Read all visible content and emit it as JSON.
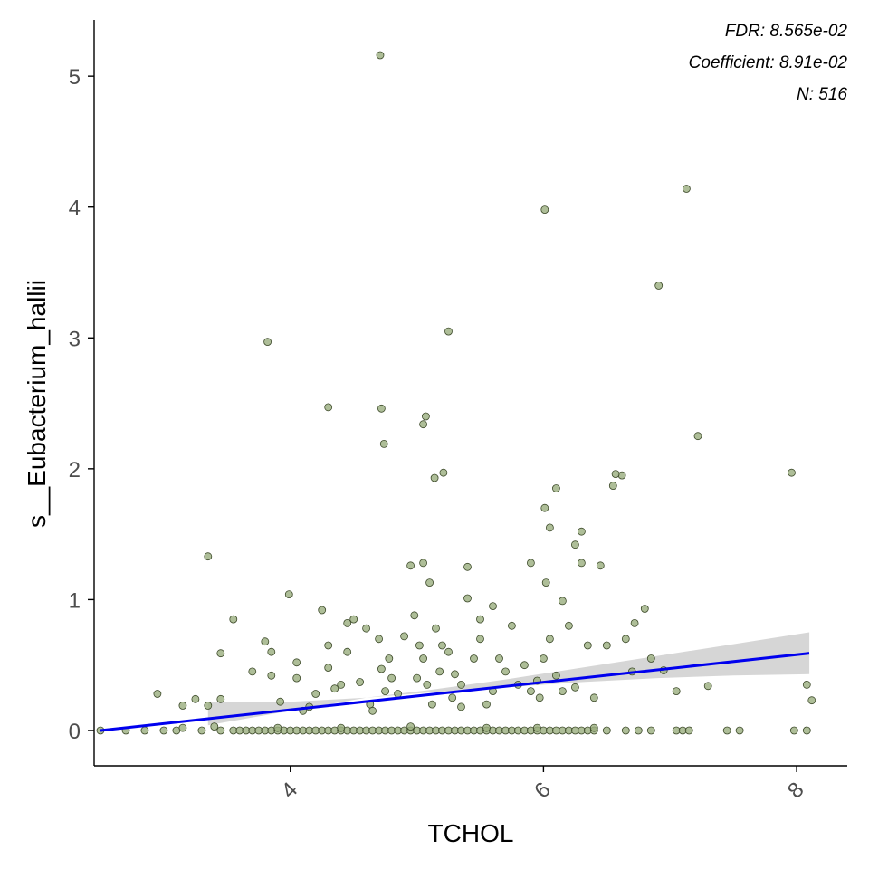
{
  "chart_data": {
    "type": "scatter",
    "xlabel": "TCHOL",
    "ylabel": "s__Eubacterium_hallii",
    "xlim": [
      2.45,
      8.4
    ],
    "ylim": [
      -0.27,
      5.43
    ],
    "x_ticks": [
      4,
      6,
      8
    ],
    "x_tick_labels": [
      "4",
      "6",
      "8"
    ],
    "y_ticks": [
      0,
      1,
      2,
      3,
      4,
      5
    ],
    "y_tick_labels": [
      "0",
      "1",
      "2",
      "3",
      "4",
      "5"
    ],
    "grid": false,
    "annotations": [
      "FDR: 8.565e-02",
      "Coefficient: 8.91e-02",
      "N: 516"
    ],
    "colors": {
      "point_fill": "#9aae7e",
      "point_stroke": "#3d4a2a",
      "fit_line": "#0000ee",
      "confidence_band": "#c8c8c8"
    },
    "fit": {
      "x": [
        2.5,
        8.1
      ],
      "y": [
        0.0,
        0.59
      ]
    },
    "confidence_band": {
      "x": [
        3.35,
        4.0,
        4.6,
        5.1,
        5.7,
        6.3,
        6.9,
        7.5,
        8.1
      ],
      "lower": [
        0.04,
        0.15,
        0.25,
        0.29,
        0.33,
        0.37,
        0.4,
        0.42,
        0.43
      ],
      "upper": [
        0.22,
        0.22,
        0.25,
        0.31,
        0.39,
        0.48,
        0.57,
        0.66,
        0.75
      ]
    },
    "points": [
      [
        2.5,
        0
      ],
      [
        2.7,
        0
      ],
      [
        2.85,
        0
      ],
      [
        3.0,
        0
      ],
      [
        3.1,
        0
      ],
      [
        3.3,
        0
      ],
      [
        3.45,
        0
      ],
      [
        3.55,
        0
      ],
      [
        3.6,
        0
      ],
      [
        3.65,
        0
      ],
      [
        3.7,
        0
      ],
      [
        3.75,
        0
      ],
      [
        3.8,
        0
      ],
      [
        3.85,
        0
      ],
      [
        3.9,
        0
      ],
      [
        3.95,
        0
      ],
      [
        4.0,
        0
      ],
      [
        4.05,
        0
      ],
      [
        4.1,
        0
      ],
      [
        4.15,
        0
      ],
      [
        4.2,
        0
      ],
      [
        4.25,
        0
      ],
      [
        4.3,
        0
      ],
      [
        4.35,
        0
      ],
      [
        4.4,
        0
      ],
      [
        4.45,
        0
      ],
      [
        4.5,
        0
      ],
      [
        4.55,
        0
      ],
      [
        4.6,
        0
      ],
      [
        4.65,
        0
      ],
      [
        4.7,
        0
      ],
      [
        4.75,
        0
      ],
      [
        4.8,
        0
      ],
      [
        4.85,
        0
      ],
      [
        4.9,
        0
      ],
      [
        4.95,
        0
      ],
      [
        5.0,
        0
      ],
      [
        5.05,
        0
      ],
      [
        5.1,
        0
      ],
      [
        5.15,
        0
      ],
      [
        5.2,
        0
      ],
      [
        5.25,
        0
      ],
      [
        5.3,
        0
      ],
      [
        5.35,
        0
      ],
      [
        5.4,
        0
      ],
      [
        5.45,
        0
      ],
      [
        5.5,
        0
      ],
      [
        5.55,
        0
      ],
      [
        5.6,
        0
      ],
      [
        5.65,
        0
      ],
      [
        5.7,
        0
      ],
      [
        5.75,
        0
      ],
      [
        5.8,
        0
      ],
      [
        5.85,
        0
      ],
      [
        5.9,
        0
      ],
      [
        5.95,
        0
      ],
      [
        6.0,
        0
      ],
      [
        6.05,
        0
      ],
      [
        6.1,
        0
      ],
      [
        6.15,
        0
      ],
      [
        6.2,
        0
      ],
      [
        6.25,
        0
      ],
      [
        6.3,
        0
      ],
      [
        6.35,
        0
      ],
      [
        6.4,
        0
      ],
      [
        6.5,
        0
      ],
      [
        6.65,
        0
      ],
      [
        6.75,
        0
      ],
      [
        6.85,
        0
      ],
      [
        7.05,
        0
      ],
      [
        7.1,
        0
      ],
      [
        7.15,
        0
      ],
      [
        7.45,
        0
      ],
      [
        7.55,
        0
      ],
      [
        7.98,
        0
      ],
      [
        8.08,
        0
      ],
      [
        3.15,
        0.02
      ],
      [
        3.4,
        0.03
      ],
      [
        3.9,
        0.02
      ],
      [
        4.4,
        0.02
      ],
      [
        4.95,
        0.03
      ],
      [
        5.55,
        0.02
      ],
      [
        5.95,
        0.02
      ],
      [
        6.4,
        0.02
      ],
      [
        2.95,
        0.28
      ],
      [
        3.15,
        0.19
      ],
      [
        3.25,
        0.24
      ],
      [
        3.35,
        0.19
      ],
      [
        3.45,
        0.24
      ],
      [
        3.35,
        1.33
      ],
      [
        3.45,
        0.59
      ],
      [
        3.55,
        0.85
      ],
      [
        3.7,
        0.45
      ],
      [
        3.8,
        0.68
      ],
      [
        3.85,
        0.6
      ],
      [
        3.85,
        0.42
      ],
      [
        3.92,
        0.22
      ],
      [
        3.99,
        1.04
      ],
      [
        4.05,
        0.4
      ],
      [
        4.05,
        0.52
      ],
      [
        4.1,
        0.15
      ],
      [
        4.15,
        0.18
      ],
      [
        4.2,
        0.28
      ],
      [
        4.25,
        0.92
      ],
      [
        4.3,
        0.48
      ],
      [
        4.3,
        0.65
      ],
      [
        4.35,
        0.32
      ],
      [
        4.4,
        0.35
      ],
      [
        4.45,
        0.6
      ],
      [
        4.45,
        0.82
      ],
      [
        4.5,
        0.85
      ],
      [
        4.55,
        0.37
      ],
      [
        4.6,
        0.78
      ],
      [
        4.63,
        0.2
      ],
      [
        4.65,
        0.15
      ],
      [
        4.7,
        0.7
      ],
      [
        4.72,
        0.47
      ],
      [
        4.75,
        0.3
      ],
      [
        4.78,
        0.55
      ],
      [
        4.8,
        0.4
      ],
      [
        4.85,
        0.28
      ],
      [
        4.9,
        0.72
      ],
      [
        4.95,
        1.26
      ],
      [
        4.98,
        0.88
      ],
      [
        5.0,
        0.4
      ],
      [
        5.02,
        0.65
      ],
      [
        5.05,
        0.55
      ],
      [
        5.05,
        1.28
      ],
      [
        5.08,
        0.35
      ],
      [
        5.1,
        1.13
      ],
      [
        5.12,
        0.2
      ],
      [
        5.15,
        0.78
      ],
      [
        5.18,
        0.45
      ],
      [
        5.2,
        0.65
      ],
      [
        5.25,
        0.6
      ],
      [
        5.28,
        0.25
      ],
      [
        5.3,
        0.43
      ],
      [
        5.35,
        0.35
      ],
      [
        5.35,
        0.18
      ],
      [
        5.4,
        1.01
      ],
      [
        5.4,
        1.25
      ],
      [
        5.45,
        0.55
      ],
      [
        5.5,
        0.7
      ],
      [
        5.5,
        0.85
      ],
      [
        5.55,
        0.2
      ],
      [
        5.6,
        0.3
      ],
      [
        5.6,
        0.95
      ],
      [
        5.65,
        0.55
      ],
      [
        5.7,
        0.45
      ],
      [
        5.75,
        0.8
      ],
      [
        5.8,
        0.35
      ],
      [
        5.85,
        0.5
      ],
      [
        5.9,
        1.28
      ],
      [
        5.9,
        0.3
      ],
      [
        5.95,
        0.38
      ],
      [
        5.97,
        0.25
      ],
      [
        6.0,
        0.55
      ],
      [
        6.02,
        1.13
      ],
      [
        6.05,
        1.55
      ],
      [
        6.05,
        0.7
      ],
      [
        6.1,
        0.42
      ],
      [
        6.1,
        1.85
      ],
      [
        6.15,
        0.3
      ],
      [
        6.15,
        0.99
      ],
      [
        6.2,
        0.8
      ],
      [
        6.25,
        1.42
      ],
      [
        6.25,
        0.33
      ],
      [
        6.3,
        1.52
      ],
      [
        6.3,
        1.28
      ],
      [
        6.35,
        0.65
      ],
      [
        6.4,
        0.25
      ],
      [
        6.45,
        1.26
      ],
      [
        6.5,
        0.65
      ],
      [
        6.55,
        1.87
      ],
      [
        6.62,
        1.95
      ],
      [
        6.65,
        0.7
      ],
      [
        6.7,
        0.45
      ],
      [
        6.72,
        0.82
      ],
      [
        6.8,
        0.93
      ],
      [
        6.85,
        0.55
      ],
      [
        6.95,
        0.46
      ],
      [
        7.05,
        0.3
      ],
      [
        7.3,
        0.34
      ],
      [
        8.08,
        0.35
      ],
      [
        8.12,
        0.23
      ],
      [
        3.82,
        2.97
      ],
      [
        4.3,
        2.47
      ],
      [
        4.72,
        2.46
      ],
      [
        4.74,
        2.19
      ],
      [
        5.05,
        2.34
      ],
      [
        5.07,
        2.4
      ],
      [
        5.14,
        1.93
      ],
      [
        5.21,
        1.97
      ],
      [
        5.25,
        3.05
      ],
      [
        6.01,
        3.98
      ],
      [
        6.01,
        1.7
      ],
      [
        6.57,
        1.96
      ],
      [
        6.91,
        3.4
      ],
      [
        7.13,
        4.14
      ],
      [
        7.22,
        2.25
      ],
      [
        7.96,
        1.97
      ],
      [
        4.71,
        5.16
      ]
    ]
  }
}
